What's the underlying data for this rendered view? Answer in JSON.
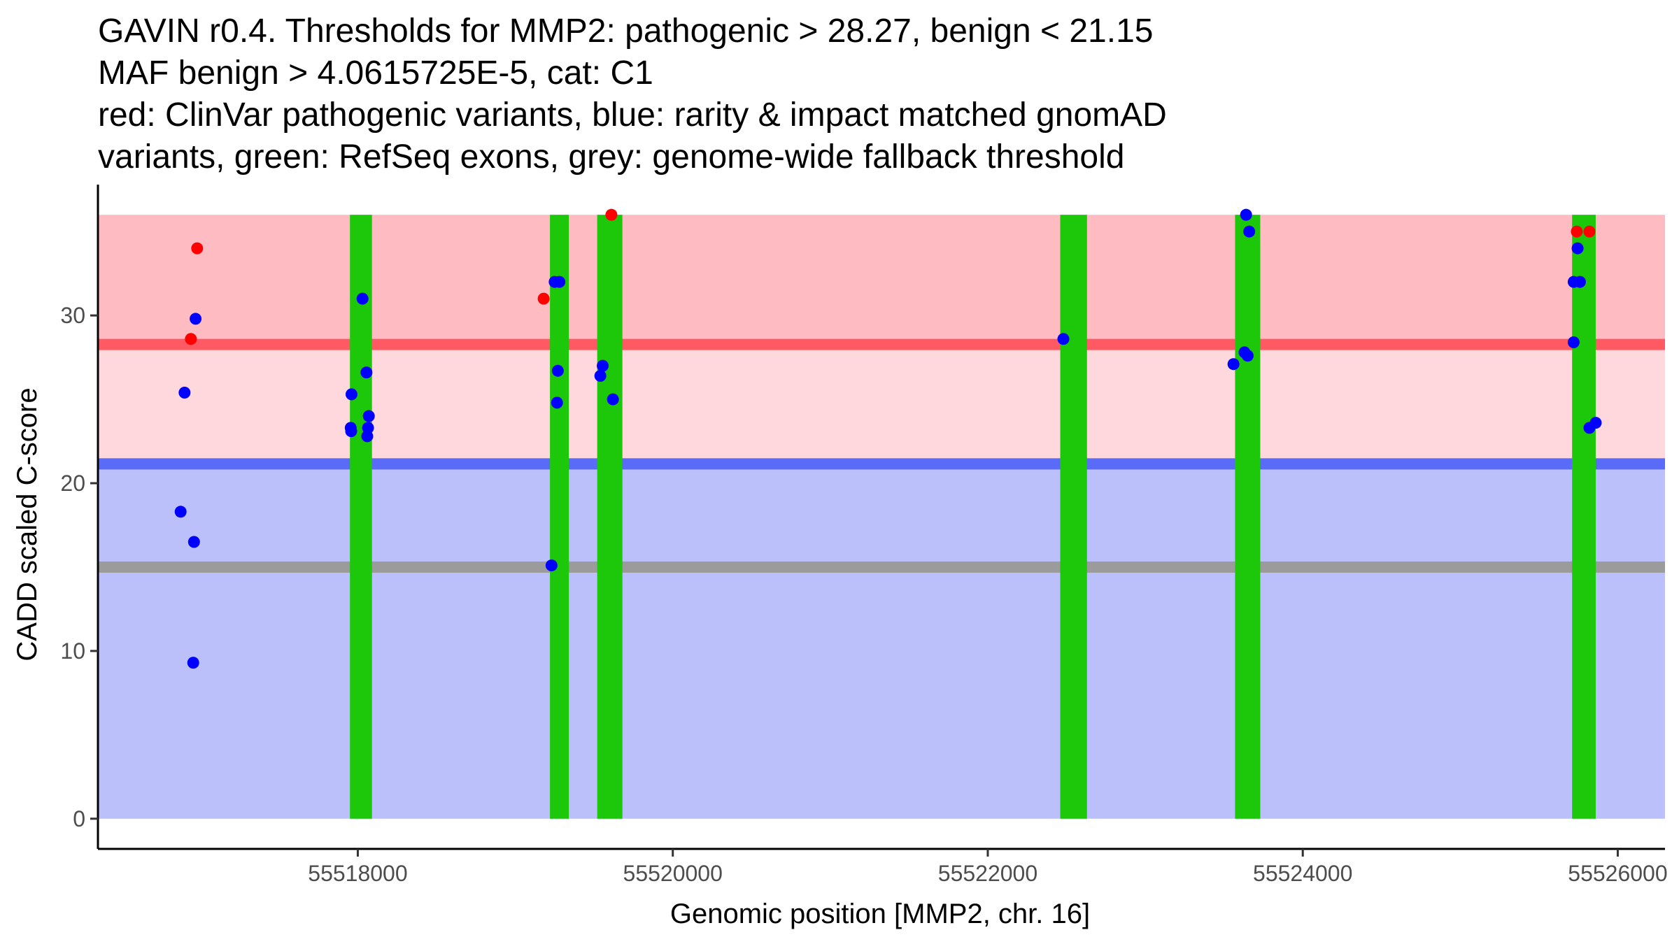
{
  "chart_data": {
    "type": "scatter",
    "title_lines": [
      "GAVIN r0.4. Thresholds for MMP2: pathogenic > 28.27, benign < 21.15",
      "MAF benign > 4.0615725E-5, cat: C1",
      "red: ClinVar pathogenic variants, blue: rarity & impact matched gnomAD",
      "variants, green: RefSeq exons, grey: genome-wide fallback threshold"
    ],
    "xlabel": "Genomic position [MMP2, chr. 16]",
    "ylabel": "CADD scaled C-score",
    "xlim": [
      55516350,
      55526300
    ],
    "ylim": [
      -1.8,
      37.8
    ],
    "x_ticks": [
      {
        "value": 55518000,
        "label": "55518000"
      },
      {
        "value": 55520000,
        "label": "55520000"
      },
      {
        "value": 55522000,
        "label": "55522000"
      },
      {
        "value": 55524000,
        "label": "55524000"
      },
      {
        "value": 55526000,
        "label": "55526000"
      }
    ],
    "y_ticks": [
      {
        "value": 0,
        "label": "0"
      },
      {
        "value": 10,
        "label": "10"
      },
      {
        "value": 20,
        "label": "20"
      },
      {
        "value": 30,
        "label": "30"
      }
    ],
    "thresholds": {
      "pathogenic": 28.27,
      "benign": 21.15,
      "genome_wide_fallback": 15.0,
      "cadd_max": 36
    },
    "regions": [
      {
        "name": "pathogenic",
        "y0": 28.27,
        "y1": 36,
        "color": "#ffbbc2"
      },
      {
        "name": "intermediate",
        "y0": 21.15,
        "y1": 28.27,
        "color": "#ffd8dd"
      },
      {
        "name": "benign",
        "y0": 0,
        "y1": 21.15,
        "color": "#bbc0fa"
      }
    ],
    "threshold_lines": [
      {
        "name": "pathogenic-threshold",
        "y": 28.27,
        "color": "#ff5a64"
      },
      {
        "name": "benign-threshold",
        "y": 21.15,
        "color": "#5a6cf7"
      },
      {
        "name": "fallback-threshold",
        "y": 15.0,
        "color": "#9b9b9b"
      }
    ],
    "exons": [
      {
        "start": 55517950,
        "end": 55518090
      },
      {
        "start": 55519220,
        "end": 55519340
      },
      {
        "start": 55519520,
        "end": 55519680
      },
      {
        "start": 55522460,
        "end": 55522630
      },
      {
        "start": 55523570,
        "end": 55523730
      },
      {
        "start": 55525710,
        "end": 55525860
      }
    ],
    "exon_color": "#1dc70a",
    "series": [
      {
        "name": "ClinVar pathogenic variants",
        "color": "#ff0000",
        "points": [
          {
            "x": 55516980,
            "y": 34.0
          },
          {
            "x": 55516940,
            "y": 28.6
          },
          {
            "x": 55519180,
            "y": 31.0
          },
          {
            "x": 55519610,
            "y": 36.0
          },
          {
            "x": 55525740,
            "y": 35.0
          },
          {
            "x": 55525820,
            "y": 35.0
          }
        ]
      },
      {
        "name": "rarity & impact matched gnomAD variants",
        "color": "#0000ff",
        "points": [
          {
            "x": 55516900,
            "y": 25.4
          },
          {
            "x": 55516875,
            "y": 18.3
          },
          {
            "x": 55516970,
            "y": 29.8
          },
          {
            "x": 55516960,
            "y": 16.5
          },
          {
            "x": 55516955,
            "y": 9.3
          },
          {
            "x": 55517960,
            "y": 25.3
          },
          {
            "x": 55517955,
            "y": 23.3
          },
          {
            "x": 55517958,
            "y": 23.1
          },
          {
            "x": 55518030,
            "y": 31.0
          },
          {
            "x": 55518055,
            "y": 26.6
          },
          {
            "x": 55518070,
            "y": 24.0
          },
          {
            "x": 55518065,
            "y": 23.3
          },
          {
            "x": 55518060,
            "y": 22.8
          },
          {
            "x": 55519250,
            "y": 32.0
          },
          {
            "x": 55519280,
            "y": 32.0
          },
          {
            "x": 55519270,
            "y": 26.7
          },
          {
            "x": 55519265,
            "y": 24.8
          },
          {
            "x": 55519230,
            "y": 15.1
          },
          {
            "x": 55519540,
            "y": 26.4
          },
          {
            "x": 55519555,
            "y": 27.0
          },
          {
            "x": 55519620,
            "y": 25.0
          },
          {
            "x": 55522480,
            "y": 28.6
          },
          {
            "x": 55523560,
            "y": 27.1
          },
          {
            "x": 55523630,
            "y": 27.8
          },
          {
            "x": 55523650,
            "y": 27.6
          },
          {
            "x": 55523640,
            "y": 36.0
          },
          {
            "x": 55523660,
            "y": 35.0
          },
          {
            "x": 55525720,
            "y": 32.0
          },
          {
            "x": 55525760,
            "y": 32.0
          },
          {
            "x": 55525745,
            "y": 34.0
          },
          {
            "x": 55525720,
            "y": 28.4
          },
          {
            "x": 55525820,
            "y": 23.3
          },
          {
            "x": 55525860,
            "y": 23.6
          }
        ]
      }
    ]
  }
}
